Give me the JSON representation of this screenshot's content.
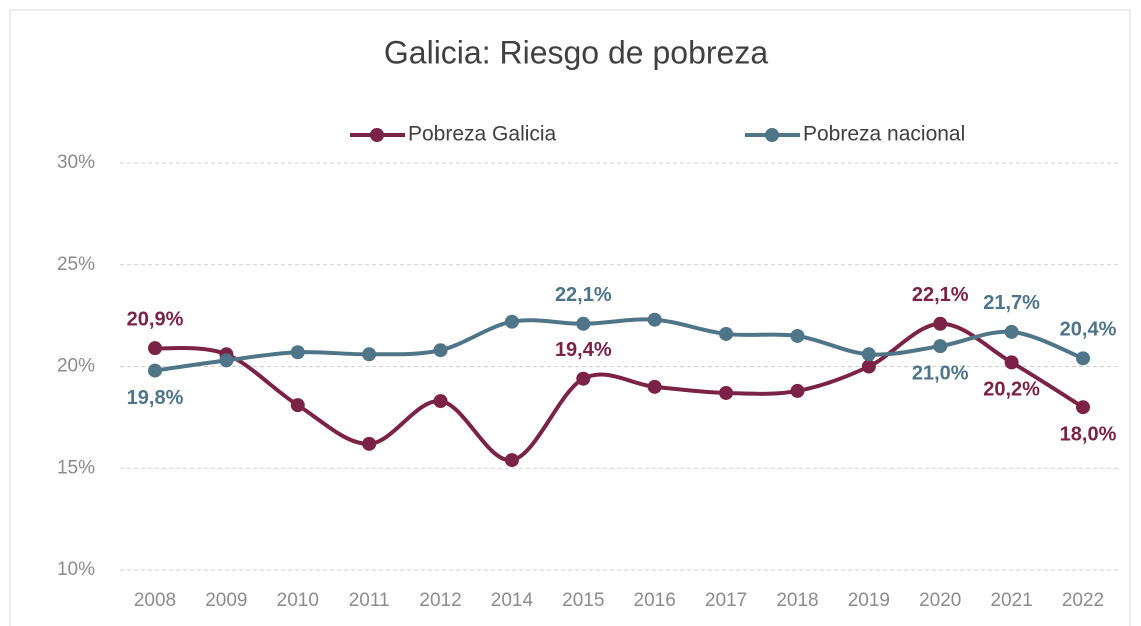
{
  "chart_data": {
    "type": "line",
    "title": "Galicia: Riesgo de pobreza",
    "categories": [
      "2008",
      "2009",
      "2010",
      "2011",
      "2012",
      "2014",
      "2015",
      "2016",
      "2017",
      "2018",
      "2019",
      "2020",
      "2021",
      "2022"
    ],
    "series": [
      {
        "name": "Pobreza Galicia",
        "color": "#7b2346",
        "values": [
          20.9,
          20.6,
          18.1,
          16.2,
          18.3,
          15.4,
          19.4,
          19.0,
          18.7,
          18.8,
          20.0,
          22.1,
          20.2,
          18.0
        ],
        "value_labels": [
          "20,9%",
          null,
          null,
          null,
          null,
          null,
          "19,4%",
          null,
          null,
          null,
          null,
          "22,1%",
          "20,2%",
          "18,0%"
        ]
      },
      {
        "name": "Pobreza nacional",
        "color": "#4f7589",
        "values": [
          19.8,
          20.3,
          20.7,
          20.6,
          20.8,
          22.2,
          22.1,
          22.3,
          21.6,
          21.5,
          20.6,
          21.0,
          21.7,
          20.4
        ],
        "value_labels": [
          "19,8%",
          null,
          null,
          null,
          null,
          null,
          "22,1%",
          null,
          null,
          null,
          null,
          "21,0%",
          "21,7%",
          "20,4%"
        ]
      }
    ],
    "ylim": [
      10,
      30
    ],
    "yticks": [
      {
        "value": 10,
        "label": "10%"
      },
      {
        "value": 15,
        "label": "15%"
      },
      {
        "value": 20,
        "label": "20%"
      },
      {
        "value": 25,
        "label": "25%"
      },
      {
        "value": 30,
        "label": "30%"
      }
    ],
    "grid": true,
    "legend": "top"
  }
}
